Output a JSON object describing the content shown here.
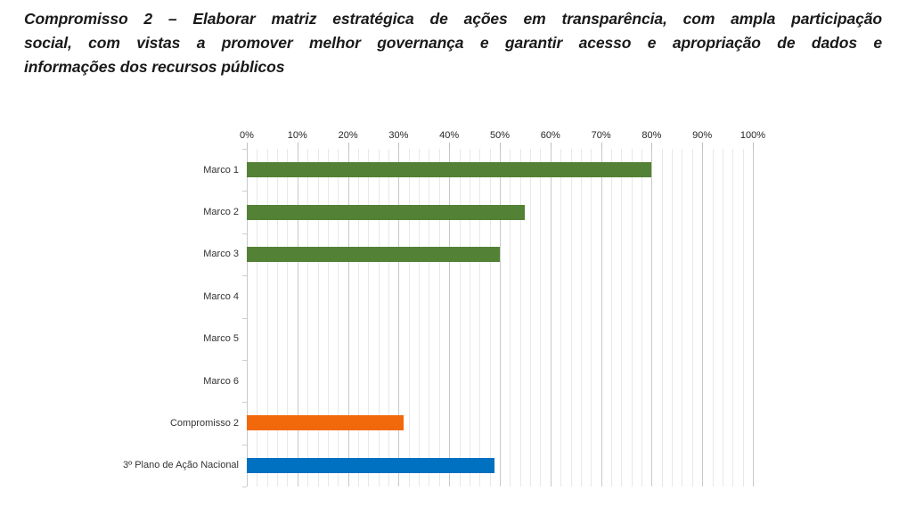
{
  "title": {
    "full": "Compromisso 2 – Elaborar matriz estratégica de ações em transparência, com ampla participação social, com vistas a promover melhor governança e garantir acesso e apropriação de dados e informações dos recursos públicos",
    "lines": [
      "Compromisso 2 – Elaborar matriz estratégica de ações em transparência, com ampla participação",
      "social, com vistas a promover melhor governança e garantir acesso e apropriação de dados e",
      "informações dos recursos públicos"
    ]
  },
  "chart_data": {
    "type": "bar",
    "orientation": "horizontal",
    "title": "",
    "categories": [
      "Marco 1",
      "Marco 2",
      "Marco 3",
      "Marco 4",
      "Marco 5",
      "Marco 6",
      "Compromisso 2",
      "3º Plano de Ação Nacional"
    ],
    "values": [
      80,
      55,
      50,
      0,
      0,
      0,
      31,
      49
    ],
    "bar_colors": [
      "#538135",
      "#538135",
      "#538135",
      "#538135",
      "#538135",
      "#538135",
      "#F2690C",
      "#0070C0"
    ],
    "x_axis": {
      "position": "top",
      "min": 0,
      "max": 100,
      "major_unit": 10,
      "minor_unit": 2,
      "tick_labels": [
        "0%",
        "10%",
        "20%",
        "30%",
        "40%",
        "50%",
        "60%",
        "70%",
        "80%",
        "90%",
        "100%"
      ]
    },
    "y_axis": {
      "reversed_categories": false
    },
    "grid": {
      "vertical_major": true,
      "vertical_minor": true,
      "horizontal": false
    },
    "legend": "none",
    "xlabel": "",
    "ylabel": ""
  },
  "colors": {
    "green": "#538135",
    "orange": "#F2690C",
    "blue": "#0070C0",
    "grid_minor": "#E8E8E8",
    "grid_major": "#C9C9C9",
    "tick_mark": "#BFBFBF",
    "axis_label_text": "#262626",
    "category_label_text": "#333333",
    "title_text": "#1A1A1A",
    "background": "#FFFFFF"
  }
}
